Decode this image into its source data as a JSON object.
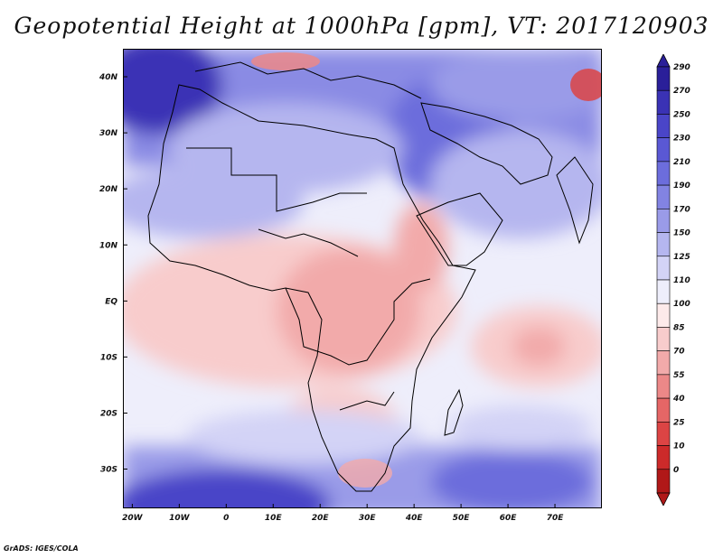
{
  "title": "Geopotential Height at 1000hPa [gpm], VT: 2017120903",
  "footer": "GrADS: IGES/COLA",
  "lat_labels": [
    "40N",
    "30N",
    "20N",
    "10N",
    "EQ",
    "10S",
    "20S",
    "30S"
  ],
  "lon_labels": [
    "20W",
    "10W",
    "0",
    "10E",
    "20E",
    "30E",
    "40E",
    "50E",
    "60E",
    "70E"
  ],
  "colorbar": {
    "labels": [
      "290",
      "270",
      "250",
      "230",
      "210",
      "190",
      "170",
      "150",
      "125",
      "110",
      "100",
      "85",
      "70",
      "55",
      "40",
      "25",
      "10",
      "0"
    ],
    "colors": [
      "#2a1f99",
      "#3a32b5",
      "#4a45c8",
      "#5a58d4",
      "#6c6ddc",
      "#8283e2",
      "#9a9be8",
      "#b5b6ef",
      "#d3d3f6",
      "#eeeefb",
      "#fdeaea",
      "#f8cccc",
      "#f2aaaa",
      "#ec8888",
      "#e56666",
      "#dc4444",
      "#cc2a2a",
      "#b01818"
    ]
  },
  "chart_data": {
    "type": "heatmap",
    "title": "Geopotential Height at 1000hPa [gpm], VT: 2017120903",
    "xlabel": "",
    "ylabel": "",
    "xlim": [
      -22,
      80
    ],
    "ylim": [
      -37,
      45
    ],
    "x_ticks": [
      -20,
      -10,
      0,
      10,
      20,
      30,
      40,
      50,
      60,
      70
    ],
    "y_ticks": [
      40,
      30,
      20,
      10,
      0,
      -10,
      -20,
      -30
    ],
    "variable": "Geopotential Height at 1000hPa",
    "units": "gpm",
    "valid_time": "2017120903",
    "color_levels": [
      0,
      10,
      25,
      40,
      55,
      70,
      85,
      100,
      110,
      125,
      150,
      170,
      190,
      210,
      230,
      250,
      270,
      290
    ],
    "grid": false,
    "legend": "right"
  }
}
